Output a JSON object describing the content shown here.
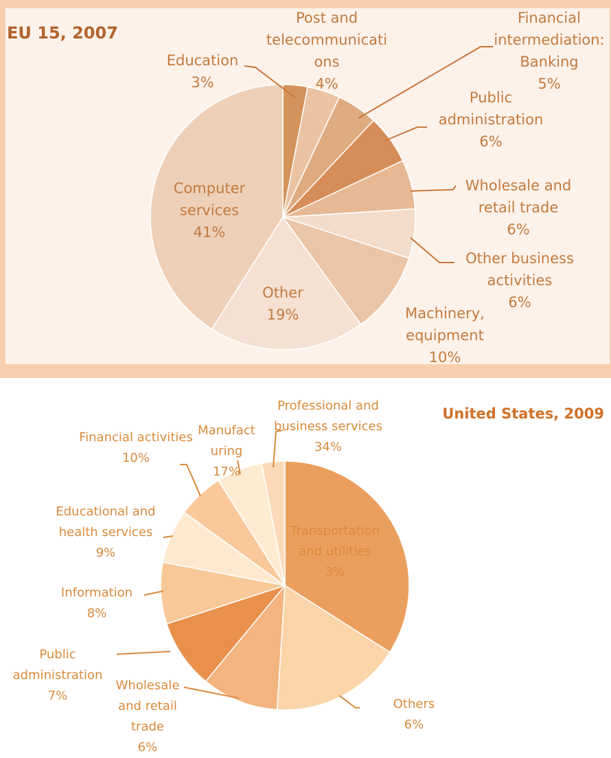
{
  "chart_data": [
    {
      "type": "pie",
      "title": "EU 15, 2007",
      "categories": [
        "Education",
        "Post and telecommunications",
        "Financial intermediation: Banking",
        "Public administration",
        "Wholesale and retail trade",
        "Other business activities",
        "Machinery, equipment",
        "Other",
        "Computer services"
      ],
      "values": [
        3,
        4,
        5,
        6,
        6,
        6,
        10,
        19,
        41
      ],
      "value_labels": [
        "3%",
        "4%",
        "5%",
        "6%",
        "6%",
        "6%",
        "10%",
        "19%",
        "41%"
      ],
      "colors": [
        "#d4935a",
        "#ebc3a2",
        "#dfab80",
        "#d68d58",
        "#e6b994",
        "#f2dccb",
        "#eac5a7",
        "#f4e1d3",
        "#eed0b8"
      ]
    },
    {
      "type": "pie",
      "title": "United States, 2009",
      "categories": [
        "Professional and business services",
        "Manufacturing",
        "Financial activities",
        "Educational and health services",
        "Information",
        "Public administration",
        "Wholesale and retail trade",
        "Others",
        "Transportation and utilities"
      ],
      "values": [
        34,
        17,
        10,
        9,
        8,
        7,
        6,
        6,
        3
      ],
      "value_labels": [
        "34%",
        "17%",
        "10%",
        "9%",
        "8%",
        "7%",
        "6%",
        "6%",
        "3%"
      ],
      "colors": [
        "#eb9f5e",
        "#fbd4aa",
        "#f3b47f",
        "#e8904c",
        "#f8c898",
        "#fee9d0",
        "#f9c99b",
        "#feebd2",
        "#fcdab8"
      ]
    }
  ]
}
